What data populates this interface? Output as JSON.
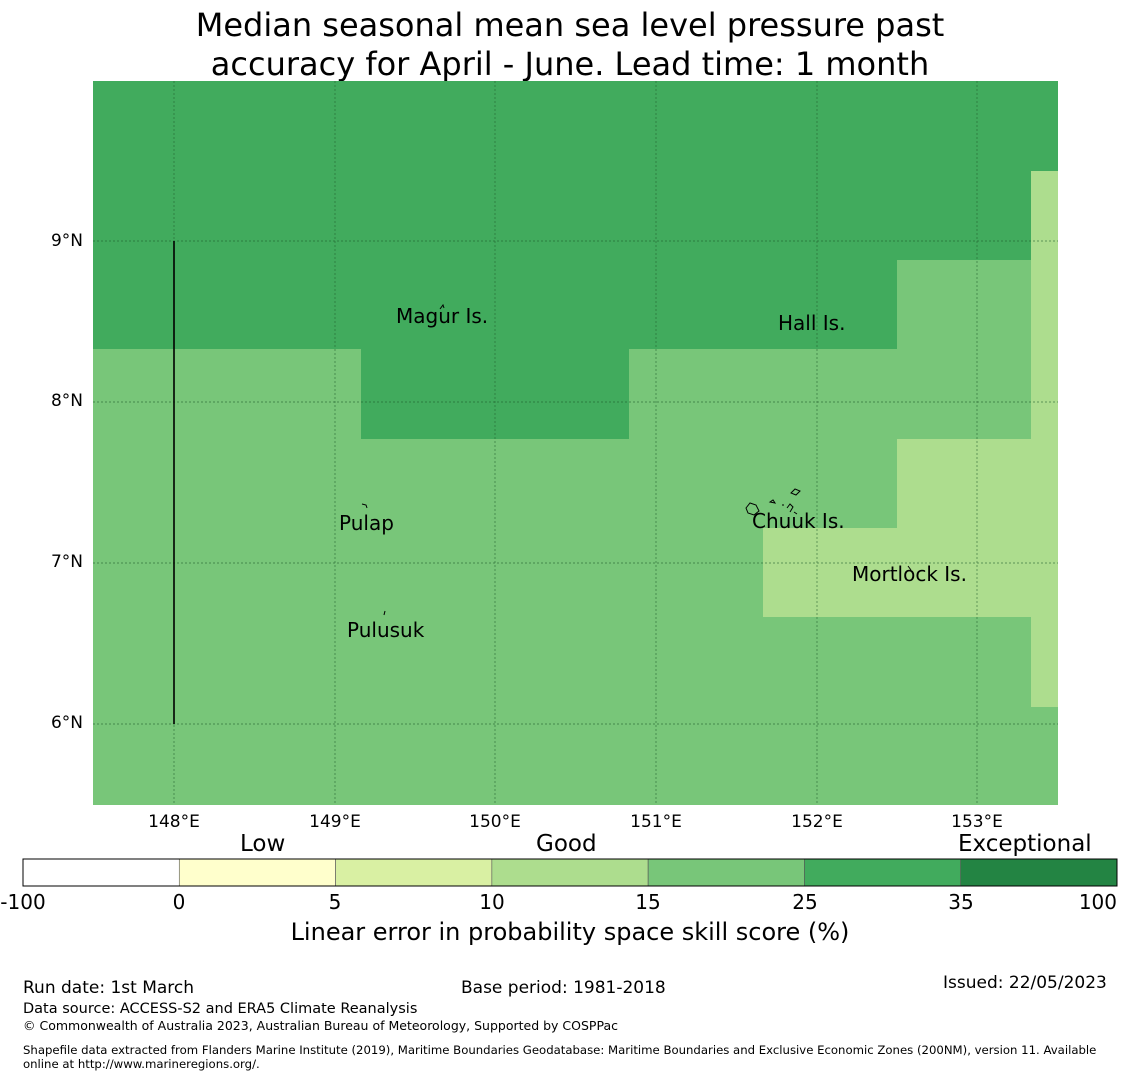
{
  "title": {
    "line1": "Median seasonal mean sea level pressure past",
    "line2": "accuracy for April - June. Lead time: 1 month"
  },
  "map": {
    "lat_labels": [
      "9°N",
      "8°N",
      "7°N",
      "6°N"
    ],
    "lon_labels": [
      "148°E",
      "149°E",
      "150°E",
      "151°E",
      "152°E",
      "153°E"
    ],
    "places": [
      "Magur Is.",
      "Hall Is.",
      "Pulap",
      "Chuuk Is.",
      "Mortlock Is.",
      "Pulusuk"
    ]
  },
  "colorbar": {
    "categories": [
      "Low",
      "Good",
      "Exceptional"
    ],
    "ticks": [
      "-100",
      "0",
      "5",
      "10",
      "15",
      "25",
      "35",
      "100"
    ],
    "colors": [
      "#ffffff",
      "#ffffcc",
      "#d9f0a3",
      "#addd8e",
      "#78c679",
      "#41ab5d",
      "#238443"
    ],
    "label": "Linear error in probability space skill score (%)"
  },
  "footer": {
    "run_date": "Run date: 1st March",
    "base_period": "Base period: 1981-2018",
    "issued": "Issued: 22/05/2023",
    "data_source": "Data source: ACCESS-S2 and ERA5 Climate Reanalysis",
    "copyright": "© Commonwealth of Australia 2023, Australian Bureau of Meteorology, Supported by COSPPac",
    "shapefile_line1": "Shapefile data extracted from Flanders Marine Institute (2019), Maritime Boundaries Geodatabase: Maritime Boundaries and Exclusive Economic Zones (200NM), version 11. Available",
    "shapefile_line2": "online at http://www.marineregions.org/."
  }
}
